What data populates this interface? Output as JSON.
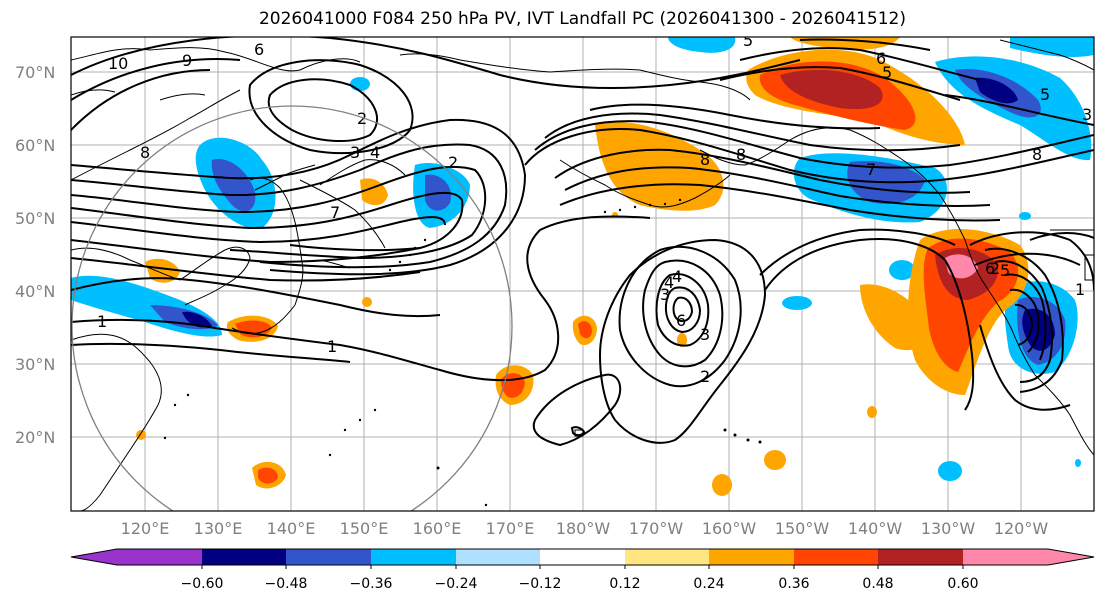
{
  "title": "2026041000 F084 250 hPa PV, IVT Landfall PC (2026041300 - 2026041512)",
  "lat_labels": [
    "70°N",
    "60°N",
    "50°N",
    "40°N",
    "30°N",
    "20°N"
  ],
  "lon_labels": [
    "120°E",
    "130°E",
    "140°E",
    "150°E",
    "160°E",
    "170°E",
    "180°W",
    "170°W",
    "160°W",
    "150°W",
    "140°W",
    "130°W",
    "120°W"
  ],
  "colorbar": {
    "tick_labels": [
      "−0.60",
      "−0.48",
      "−0.36",
      "−0.24",
      "−0.12",
      "0.12",
      "0.24",
      "0.36",
      "0.48",
      "0.60"
    ],
    "colors": [
      "#9933cc",
      "#000080",
      "#3355cc",
      "#00bfff",
      "#b0e0ff",
      "#ffffff",
      "#ffe680",
      "#ffa500",
      "#ff4500",
      "#b22222",
      "#ff88aa"
    ]
  },
  "contour_labels": [
    "10",
    "9",
    "8",
    "8",
    "6",
    "5",
    "5",
    "6",
    "5",
    "2",
    "3",
    "4",
    "7",
    "8",
    "8",
    "7",
    "6",
    "5",
    "4",
    "3",
    "2",
    "2",
    "1",
    "1",
    "1",
    "4",
    "3",
    "6",
    "3",
    "2"
  ]
}
